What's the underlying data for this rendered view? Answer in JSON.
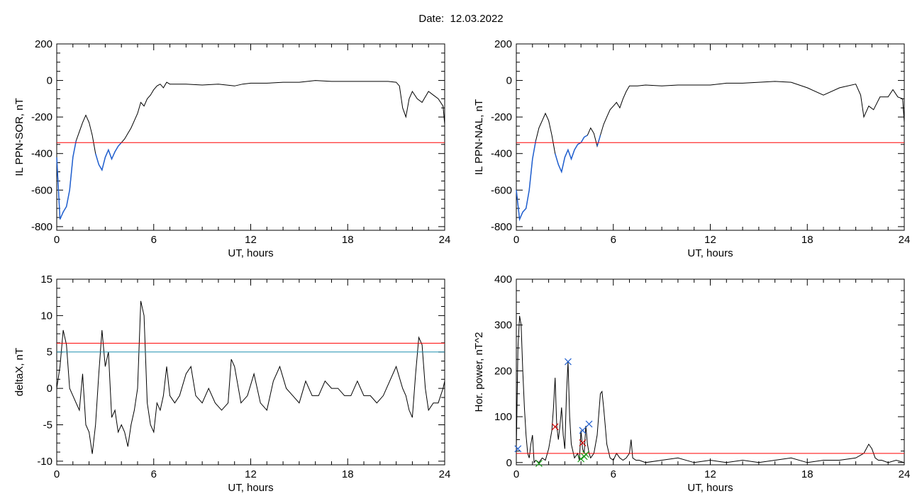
{
  "header": {
    "date_label": "Date:",
    "date_value": "12.03.2022"
  },
  "chart_data": [
    {
      "id": "sor",
      "type": "line",
      "ylabel": "IL PPN-SOR, nT",
      "xlabel": "UT, hours",
      "xlim": [
        0,
        24
      ],
      "ylim": [
        -820,
        200
      ],
      "xticks": [
        0,
        6,
        12,
        18,
        24
      ],
      "yticks": [
        -800,
        -600,
        -400,
        -200,
        0,
        200
      ],
      "threshold_lines": [
        {
          "y": -340,
          "color": "#ff0000"
        }
      ],
      "series": [
        {
          "color": "#000000",
          "x": [
            0,
            0.2,
            0.4,
            0.6,
            0.8,
            1.0,
            1.2,
            1.4,
            1.6,
            1.8,
            2.0,
            2.2,
            2.4,
            2.6,
            2.8,
            3.0,
            3.2,
            3.4,
            3.6,
            3.8,
            4.0,
            4.2,
            4.4,
            4.6,
            4.8,
            5.0,
            5.2,
            5.4,
            5.6,
            5.8,
            6.0,
            6.2,
            6.4,
            6.6,
            6.8,
            7.0,
            7.5,
            8.0,
            9,
            10,
            11,
            11.5,
            12,
            13,
            14,
            15,
            16,
            17,
            18,
            19,
            20,
            20.5,
            21,
            21.2,
            21.4,
            21.6,
            21.8,
            22.0,
            22.3,
            22.6,
            23,
            23.3,
            23.6,
            23.9,
            24
          ],
          "y": [
            -420,
            -760,
            -720,
            -690,
            -600,
            -420,
            -330,
            -280,
            -230,
            -190,
            -230,
            -300,
            -400,
            -460,
            -490,
            -420,
            -380,
            -430,
            -390,
            -360,
            -340,
            -320,
            -290,
            -260,
            -220,
            -180,
            -120,
            -140,
            -100,
            -80,
            -50,
            -30,
            -20,
            -40,
            -10,
            -20,
            -20,
            -20,
            -25,
            -20,
            -30,
            -20,
            -15,
            -15,
            -10,
            -10,
            0,
            -5,
            -5,
            -5,
            -5,
            -5,
            -10,
            -30,
            -150,
            -200,
            -100,
            -60,
            -100,
            -120,
            -60,
            -80,
            -100,
            -140,
            -240
          ]
        },
        {
          "color": "#1f5fd0",
          "x": [
            0,
            0.2,
            0.4,
            0.6,
            0.8,
            1.0,
            1.2
          ],
          "y": [
            -420,
            -760,
            -720,
            -690,
            -600,
            -420,
            -330
          ]
        },
        {
          "color": "#1f5fd0",
          "x": [
            2.4,
            2.6,
            2.8,
            3.0,
            3.2,
            3.4,
            3.6,
            3.8,
            4.0
          ],
          "y": [
            -400,
            -460,
            -490,
            -420,
            -380,
            -430,
            -390,
            -360,
            -340
          ]
        }
      ]
    },
    {
      "id": "nal",
      "type": "line",
      "ylabel": "IL PPN-NAL, nT",
      "xlabel": "UT, hours",
      "xlim": [
        0,
        24
      ],
      "ylim": [
        -820,
        200
      ],
      "xticks": [
        0,
        6,
        12,
        18,
        24
      ],
      "yticks": [
        -800,
        -600,
        -400,
        -200,
        0,
        200
      ],
      "threshold_lines": [
        {
          "y": -340,
          "color": "#ff0000"
        }
      ],
      "series": [
        {
          "color": "#000000",
          "x": [
            0,
            0.2,
            0.4,
            0.6,
            0.8,
            1.0,
            1.2,
            1.4,
            1.6,
            1.8,
            2.0,
            2.2,
            2.4,
            2.6,
            2.8,
            3.0,
            3.2,
            3.4,
            3.6,
            3.8,
            4.0,
            4.2,
            4.4,
            4.6,
            4.8,
            5.0,
            5.2,
            5.4,
            5.6,
            5.8,
            6.0,
            6.2,
            6.4,
            6.6,
            6.8,
            7.0,
            7.5,
            8,
            9,
            10,
            11,
            12,
            13,
            14,
            15,
            16,
            17,
            18,
            19,
            20,
            21,
            21.3,
            21.5,
            21.8,
            22.1,
            22.5,
            23,
            23.3,
            23.6,
            23.9,
            24
          ],
          "y": [
            -600,
            -760,
            -720,
            -700,
            -600,
            -430,
            -330,
            -260,
            -220,
            -180,
            -220,
            -300,
            -400,
            -460,
            -500,
            -420,
            -380,
            -430,
            -380,
            -350,
            -340,
            -310,
            -300,
            -260,
            -290,
            -360,
            -300,
            -240,
            -200,
            -160,
            -140,
            -120,
            -150,
            -100,
            -60,
            -30,
            -30,
            -25,
            -30,
            -25,
            -25,
            -25,
            -15,
            -15,
            -10,
            -5,
            -10,
            -40,
            -80,
            -40,
            -20,
            -80,
            -200,
            -140,
            -160,
            -90,
            -90,
            -50,
            -90,
            -100,
            -230
          ]
        },
        {
          "color": "#1f5fd0",
          "x": [
            0,
            0.2,
            0.4,
            0.6,
            0.8,
            1.0,
            1.2
          ],
          "y": [
            -600,
            -760,
            -720,
            -700,
            -600,
            -430,
            -330
          ]
        },
        {
          "color": "#1f5fd0",
          "x": [
            2.4,
            2.6,
            2.8,
            3.0,
            3.2,
            3.4,
            3.6,
            3.8,
            4.0,
            4.2,
            4.4
          ],
          "y": [
            -400,
            -460,
            -500,
            -420,
            -380,
            -430,
            -380,
            -350,
            -340,
            -310,
            -300
          ]
        },
        {
          "color": "#1f5fd0",
          "x": [
            5.0,
            5.2
          ],
          "y": [
            -360,
            -300
          ]
        }
      ]
    },
    {
      "id": "deltax",
      "type": "line",
      "ylabel": "deltaX, nT",
      "xlabel": "UT, hours",
      "xlim": [
        0,
        24
      ],
      "ylim": [
        -10.5,
        15
      ],
      "xticks": [
        0,
        6,
        12,
        18,
        24
      ],
      "yticks": [
        -10,
        -5,
        0,
        5,
        10,
        15
      ],
      "threshold_lines": [
        {
          "y": 6.2,
          "color": "#ff0000"
        },
        {
          "y": 5.0,
          "color": "#1f8fb0"
        }
      ],
      "series": [
        {
          "color": "#000000",
          "x": [
            0,
            0.2,
            0.4,
            0.6,
            0.8,
            1.0,
            1.2,
            1.4,
            1.6,
            1.8,
            2.0,
            2.2,
            2.4,
            2.6,
            2.8,
            3.0,
            3.2,
            3.4,
            3.6,
            3.8,
            4.0,
            4.2,
            4.4,
            4.6,
            4.8,
            5.0,
            5.2,
            5.4,
            5.6,
            5.8,
            6.0,
            6.2,
            6.4,
            6.6,
            6.8,
            7.0,
            7.3,
            7.6,
            8.0,
            8.3,
            8.6,
            9.0,
            9.4,
            9.8,
            10.2,
            10.6,
            10.8,
            11.0,
            11.4,
            11.8,
            12.2,
            12.6,
            13.0,
            13.4,
            13.8,
            14.2,
            14.6,
            15.0,
            15.4,
            15.8,
            16.2,
            16.6,
            17.0,
            17.4,
            17.8,
            18.2,
            18.6,
            19.0,
            19.4,
            19.8,
            20.2,
            20.6,
            21.0,
            21.4,
            21.6,
            21.8,
            22.0,
            22.2,
            22.4,
            22.6,
            22.8,
            23.0,
            23.3,
            23.6,
            23.9,
            24
          ],
          "y": [
            0,
            3,
            8,
            6,
            0,
            -1,
            -2,
            -3,
            2,
            -5,
            -6,
            -9,
            -5,
            2,
            8,
            3,
            5,
            -4,
            -3,
            -6,
            -5,
            -6,
            -8,
            -5,
            -3,
            0,
            12,
            10,
            -2,
            -5,
            -6,
            -2,
            -3,
            -1,
            3,
            -1,
            -2,
            -1,
            2,
            3,
            -1,
            -2,
            0,
            -2,
            -3,
            -2,
            4,
            3,
            -2,
            -1,
            2,
            -2,
            -3,
            1,
            3,
            0,
            -1,
            -2,
            1,
            -1,
            -1,
            1,
            0,
            0,
            -1,
            -1,
            1,
            -1,
            -1,
            -2,
            -1,
            1,
            3,
            0,
            -1,
            -3,
            -4,
            2,
            7,
            6,
            0,
            -3,
            -2,
            -2,
            0,
            1
          ]
        }
      ]
    },
    {
      "id": "power",
      "type": "line",
      "ylabel": "Hor. power, nT^2",
      "xlabel": "UT, hours",
      "xlim": [
        0,
        24
      ],
      "ylim": [
        -5,
        400
      ],
      "xticks": [
        0,
        6,
        12,
        18,
        24
      ],
      "yticks": [
        0,
        100,
        200,
        300,
        400
      ],
      "threshold_lines": [
        {
          "y": 20,
          "color": "#ff0000"
        }
      ],
      "series": [
        {
          "color": "#000000",
          "x": [
            0,
            0.1,
            0.2,
            0.3,
            0.4,
            0.5,
            0.6,
            0.7,
            0.8,
            0.9,
            1.0,
            1.1,
            1.2,
            1.4,
            1.6,
            1.8,
            2.0,
            2.2,
            2.3,
            2.4,
            2.5,
            2.6,
            2.7,
            2.8,
            2.9,
            3.0,
            3.1,
            3.2,
            3.3,
            3.4,
            3.6,
            3.8,
            3.9,
            4.0,
            4.1,
            4.2,
            4.3,
            4.4,
            4.5,
            4.6,
            4.8,
            5.0,
            5.2,
            5.3,
            5.4,
            5.5,
            5.6,
            5.8,
            6.0,
            6.2,
            6.4,
            6.6,
            6.8,
            7.0,
            7.1,
            7.2,
            7.4,
            7.6,
            8,
            9,
            10,
            11,
            12,
            13,
            14,
            15,
            16,
            17,
            18,
            19,
            20,
            21,
            21.5,
            21.8,
            22.0,
            22.2,
            22.4,
            22.6,
            23,
            23.5,
            24
          ],
          "y": [
            30,
            250,
            320,
            300,
            200,
            120,
            60,
            20,
            10,
            40,
            60,
            0,
            5,
            0,
            10,
            5,
            30,
            70,
            120,
            185,
            80,
            50,
            80,
            120,
            60,
            30,
            150,
            220,
            100,
            40,
            10,
            20,
            5,
            70,
            30,
            20,
            80,
            40,
            20,
            10,
            20,
            60,
            150,
            155,
            120,
            80,
            40,
            10,
            5,
            20,
            10,
            5,
            10,
            20,
            50,
            10,
            5,
            5,
            0,
            5,
            10,
            0,
            5,
            0,
            5,
            0,
            5,
            10,
            0,
            5,
            5,
            10,
            20,
            40,
            30,
            10,
            5,
            5,
            0,
            5,
            0
          ]
        }
      ],
      "markers": [
        {
          "x": 0.1,
          "y": 30,
          "color": "#1f5fd0"
        },
        {
          "x": 2.4,
          "y": 78,
          "color": "#d00000"
        },
        {
          "x": 3.2,
          "y": 220,
          "color": "#1f5fd0"
        },
        {
          "x": 4.1,
          "y": 70,
          "color": "#1f5fd0"
        },
        {
          "x": 4.5,
          "y": 84,
          "color": "#1f5fd0"
        },
        {
          "x": 4.1,
          "y": 43,
          "color": "#d00000"
        },
        {
          "x": 4.2,
          "y": 13,
          "color": "#1a9a1a"
        },
        {
          "x": 4.3,
          "y": 18,
          "color": "#1a9a1a"
        },
        {
          "x": 4.0,
          "y": 8,
          "color": "#1a9a1a"
        },
        {
          "x": 1.4,
          "y": -2,
          "color": "#1a9a1a"
        }
      ]
    }
  ]
}
